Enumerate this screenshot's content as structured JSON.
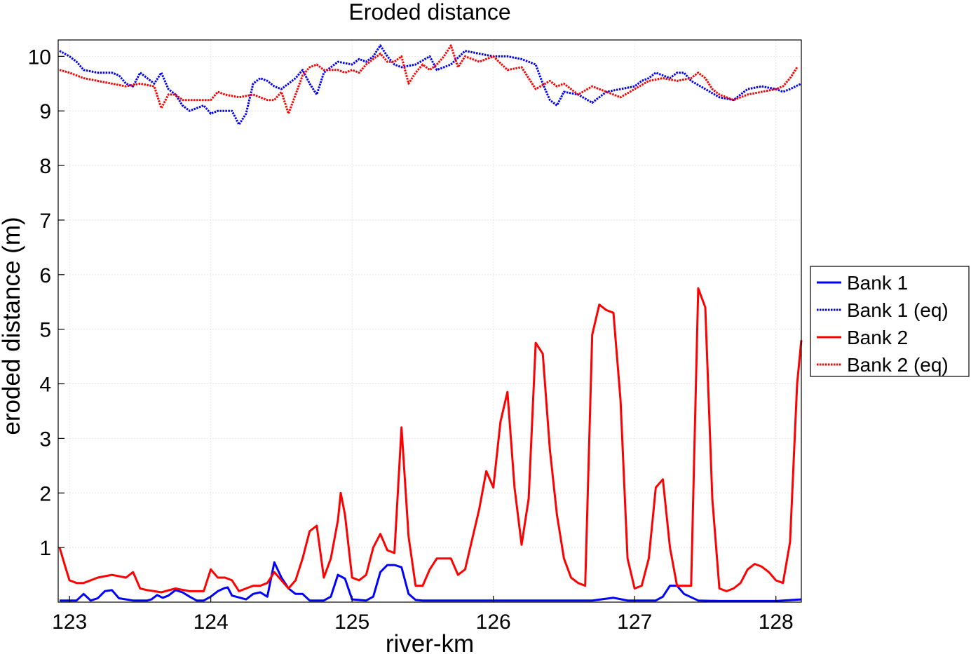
{
  "chart_data": {
    "type": "line",
    "title": "Eroded distance",
    "xlabel": "river-km",
    "ylabel": "eroded distance (m)",
    "xlim": [
      122.92,
      128.18
    ],
    "ylim": [
      0,
      10.3
    ],
    "xticks": [
      123,
      124,
      125,
      126,
      127,
      128
    ],
    "yticks": [
      1,
      2,
      3,
      4,
      5,
      6,
      7,
      8,
      9,
      10
    ],
    "grid": true,
    "legend_position": "right",
    "series": [
      {
        "name": "Bank 1",
        "color": "#0000ff",
        "style": "solid",
        "x": [
          122.93,
          123.0,
          123.05,
          123.1,
          123.15,
          123.2,
          123.25,
          123.3,
          123.35,
          123.45,
          123.55,
          123.58,
          123.62,
          123.66,
          123.7,
          123.75,
          123.8,
          123.85,
          123.9,
          123.95,
          124.0,
          124.05,
          124.1,
          124.12,
          124.15,
          124.25,
          124.3,
          124.35,
          124.4,
          124.45,
          124.5,
          124.55,
          124.6,
          124.65,
          124.7,
          124.8,
          124.85,
          124.9,
          124.95,
          125.0,
          125.1,
          125.15,
          125.2,
          125.25,
          125.3,
          125.35,
          125.4,
          125.45,
          125.5,
          126.0,
          126.1,
          126.2,
          126.5,
          126.7,
          126.85,
          126.95,
          127.05,
          127.15,
          127.2,
          127.25,
          127.3,
          127.35,
          127.45,
          127.6,
          128.0,
          128.18
        ],
        "y": [
          0.03,
          0.03,
          0.03,
          0.15,
          0.03,
          0.07,
          0.2,
          0.22,
          0.07,
          0.03,
          0.03,
          0.05,
          0.13,
          0.08,
          0.12,
          0.22,
          0.18,
          0.1,
          0.03,
          0.03,
          0.1,
          0.2,
          0.26,
          0.27,
          0.12,
          0.05,
          0.15,
          0.18,
          0.1,
          0.73,
          0.45,
          0.25,
          0.15,
          0.15,
          0.03,
          0.03,
          0.1,
          0.5,
          0.43,
          0.05,
          0.03,
          0.1,
          0.55,
          0.68,
          0.68,
          0.64,
          0.15,
          0.04,
          0.03,
          0.03,
          0.03,
          0.03,
          0.03,
          0.03,
          0.08,
          0.03,
          0.03,
          0.03,
          0.1,
          0.3,
          0.3,
          0.15,
          0.03,
          0.02,
          0.02,
          0.05
        ]
      },
      {
        "name": "Bank 1 (eq)",
        "color": "#0000ff",
        "style": "dotted",
        "x": [
          122.93,
          123.0,
          123.05,
          123.1,
          123.2,
          123.3,
          123.35,
          123.4,
          123.45,
          123.5,
          123.55,
          123.6,
          123.65,
          123.7,
          123.75,
          123.8,
          123.85,
          123.9,
          123.95,
          124.0,
          124.05,
          124.1,
          124.15,
          124.2,
          124.25,
          124.3,
          124.35,
          124.4,
          124.45,
          124.5,
          124.55,
          124.6,
          124.65,
          124.7,
          124.75,
          124.8,
          124.85,
          124.9,
          125.0,
          125.05,
          125.1,
          125.15,
          125.2,
          125.25,
          125.3,
          125.35,
          125.45,
          125.55,
          125.6,
          125.7,
          125.8,
          125.9,
          126.0,
          126.1,
          126.2,
          126.3,
          126.35,
          126.4,
          126.45,
          126.5,
          126.6,
          126.7,
          126.8,
          126.9,
          127.0,
          127.05,
          127.1,
          127.15,
          127.2,
          127.25,
          127.3,
          127.35,
          127.4,
          127.5,
          127.6,
          127.7,
          127.8,
          127.9,
          128.0,
          128.05,
          128.1,
          128.18
        ],
        "y": [
          10.1,
          10.0,
          9.9,
          9.75,
          9.7,
          9.7,
          9.65,
          9.5,
          9.45,
          9.7,
          9.6,
          9.5,
          9.7,
          9.4,
          9.3,
          9.1,
          9.0,
          9.05,
          9.1,
          8.95,
          9.0,
          9.0,
          9.0,
          8.75,
          8.95,
          9.5,
          9.6,
          9.55,
          9.45,
          9.4,
          9.5,
          9.6,
          9.75,
          9.5,
          9.3,
          9.7,
          9.8,
          9.9,
          9.85,
          9.95,
          9.9,
          10.0,
          10.2,
          10.0,
          9.85,
          9.8,
          9.85,
          10.0,
          9.75,
          9.85,
          10.1,
          10.05,
          10.0,
          10.0,
          9.95,
          9.85,
          9.5,
          9.2,
          9.1,
          9.35,
          9.3,
          9.15,
          9.35,
          9.4,
          9.45,
          9.55,
          9.6,
          9.7,
          9.65,
          9.6,
          9.7,
          9.7,
          9.55,
          9.4,
          9.25,
          9.2,
          9.4,
          9.45,
          9.4,
          9.35,
          9.4,
          9.5
        ]
      },
      {
        "name": "Bank 2",
        "color": "#ff0000",
        "style": "solid",
        "x": [
          122.93,
          122.97,
          123.0,
          123.05,
          123.1,
          123.2,
          123.3,
          123.4,
          123.45,
          123.5,
          123.55,
          123.6,
          123.65,
          123.75,
          123.85,
          123.95,
          124.0,
          124.05,
          124.1,
          124.15,
          124.2,
          124.3,
          124.35,
          124.4,
          124.45,
          124.5,
          124.55,
          124.6,
          124.65,
          124.7,
          124.75,
          124.8,
          124.85,
          124.9,
          124.92,
          124.95,
          125.0,
          125.05,
          125.1,
          125.15,
          125.2,
          125.25,
          125.3,
          125.35,
          125.4,
          125.45,
          125.5,
          125.55,
          125.6,
          125.65,
          125.7,
          125.75,
          125.8,
          125.9,
          125.95,
          126.0,
          126.05,
          126.1,
          126.15,
          126.2,
          126.25,
          126.3,
          126.35,
          126.4,
          126.45,
          126.5,
          126.55,
          126.6,
          126.65,
          126.7,
          126.75,
          126.8,
          126.85,
          126.9,
          126.95,
          127.0,
          127.05,
          127.1,
          127.15,
          127.2,
          127.25,
          127.3,
          127.35,
          127.4,
          127.45,
          127.5,
          127.55,
          127.6,
          127.65,
          127.7,
          127.75,
          127.8,
          127.85,
          127.9,
          127.95,
          128.0,
          128.05,
          128.1,
          128.15,
          128.18
        ],
        "y": [
          1.0,
          0.65,
          0.4,
          0.35,
          0.35,
          0.45,
          0.5,
          0.45,
          0.55,
          0.25,
          0.22,
          0.2,
          0.18,
          0.25,
          0.2,
          0.2,
          0.6,
          0.45,
          0.45,
          0.4,
          0.2,
          0.3,
          0.3,
          0.35,
          0.55,
          0.4,
          0.25,
          0.4,
          0.8,
          1.3,
          1.4,
          0.45,
          0.8,
          1.5,
          2.0,
          1.6,
          0.45,
          0.4,
          0.5,
          1.0,
          1.25,
          0.95,
          0.9,
          3.2,
          1.2,
          0.3,
          0.3,
          0.6,
          0.8,
          0.8,
          0.8,
          0.5,
          0.6,
          1.7,
          2.4,
          2.1,
          3.3,
          3.85,
          2.1,
          1.05,
          1.9,
          4.75,
          4.55,
          2.8,
          1.6,
          0.8,
          0.45,
          0.35,
          0.3,
          4.9,
          5.45,
          5.35,
          5.3,
          3.7,
          0.8,
          0.25,
          0.3,
          0.8,
          2.1,
          2.25,
          1.0,
          0.3,
          0.3,
          0.3,
          5.75,
          5.4,
          1.9,
          0.25,
          0.2,
          0.25,
          0.35,
          0.6,
          0.7,
          0.65,
          0.55,
          0.4,
          0.35,
          1.1,
          4.0,
          4.8
        ]
      },
      {
        "name": "Bank 2 (eq)",
        "color": "#ff0000",
        "style": "dotted",
        "x": [
          122.93,
          123.0,
          123.1,
          123.2,
          123.3,
          123.4,
          123.5,
          123.6,
          123.65,
          123.7,
          123.75,
          123.8,
          123.9,
          124.0,
          124.05,
          124.1,
          124.2,
          124.3,
          124.4,
          124.45,
          124.5,
          124.55,
          124.6,
          124.65,
          124.7,
          124.75,
          124.8,
          124.85,
          124.9,
          124.95,
          125.0,
          125.05,
          125.1,
          125.15,
          125.2,
          125.25,
          125.3,
          125.35,
          125.4,
          125.45,
          125.5,
          125.55,
          125.6,
          125.65,
          125.7,
          125.75,
          125.8,
          125.9,
          126.0,
          126.1,
          126.2,
          126.3,
          126.4,
          126.45,
          126.5,
          126.6,
          126.7,
          126.8,
          126.9,
          127.0,
          127.1,
          127.2,
          127.3,
          127.4,
          127.45,
          127.5,
          127.55,
          127.6,
          127.7,
          127.8,
          127.9,
          128.0,
          128.05,
          128.1,
          128.15
        ],
        "y": [
          9.75,
          9.7,
          9.6,
          9.55,
          9.5,
          9.45,
          9.5,
          9.45,
          9.05,
          9.3,
          9.3,
          9.2,
          9.2,
          9.2,
          9.35,
          9.3,
          9.25,
          9.3,
          9.2,
          9.2,
          9.35,
          8.95,
          9.3,
          9.65,
          9.8,
          9.85,
          9.75,
          9.75,
          9.75,
          9.7,
          9.75,
          9.7,
          9.85,
          9.95,
          10.05,
          9.9,
          9.9,
          10.0,
          9.5,
          9.7,
          9.85,
          9.75,
          9.85,
          10.0,
          10.2,
          9.8,
          10.0,
          9.9,
          10.0,
          9.75,
          9.8,
          9.4,
          9.55,
          9.45,
          9.5,
          9.3,
          9.45,
          9.35,
          9.25,
          9.4,
          9.55,
          9.6,
          9.55,
          9.6,
          9.7,
          9.6,
          9.4,
          9.3,
          9.2,
          9.3,
          9.35,
          9.4,
          9.45,
          9.6,
          9.8
        ]
      }
    ]
  }
}
